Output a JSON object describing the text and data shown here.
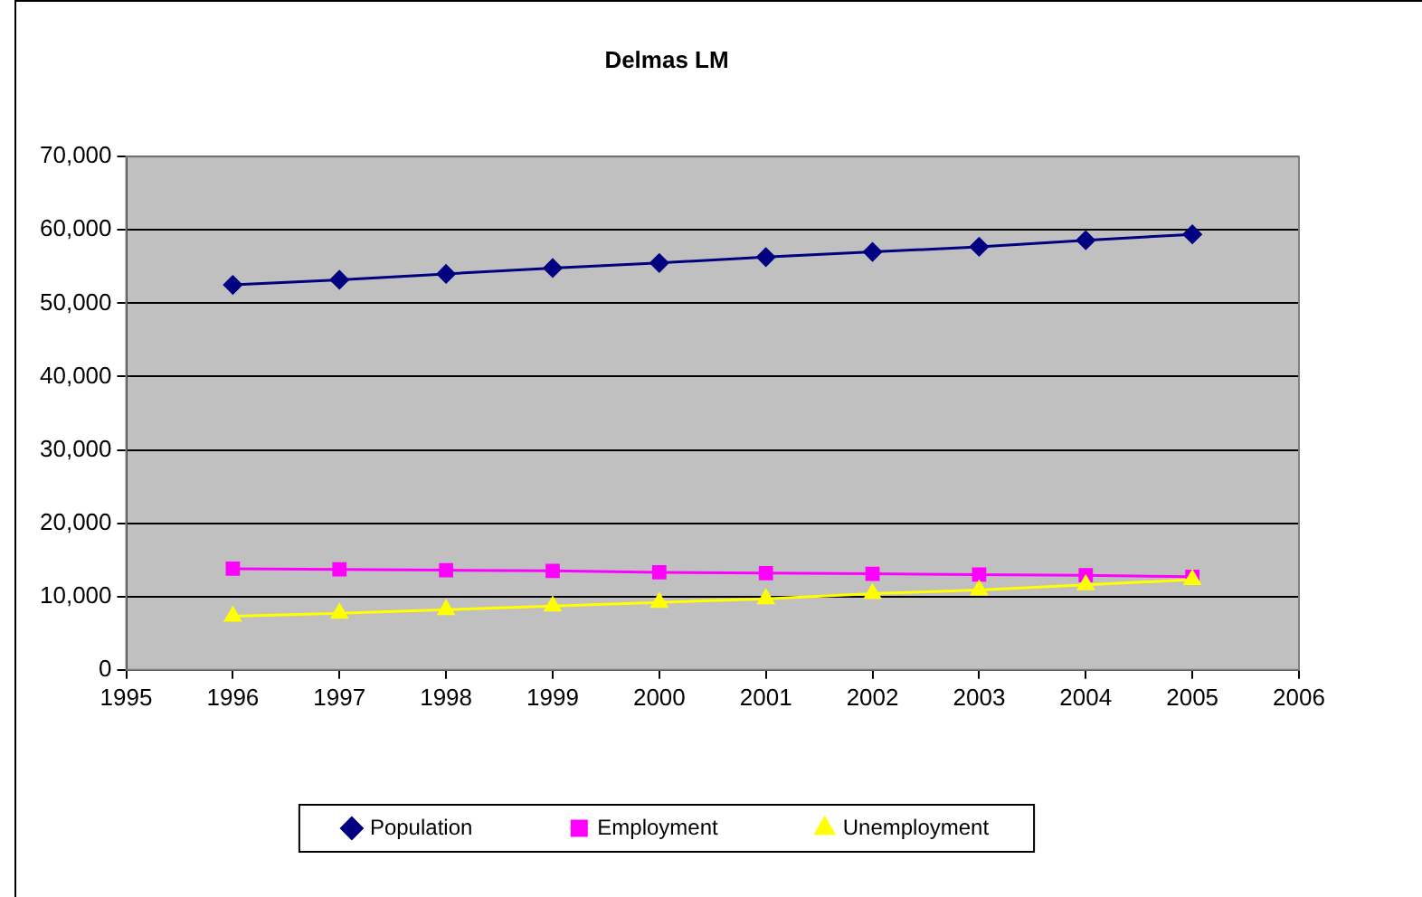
{
  "chart_data": {
    "type": "line",
    "title": "Delmas LM",
    "x": [
      1996,
      1997,
      1998,
      1999,
      2000,
      2001,
      2002,
      2003,
      2004,
      2005
    ],
    "series": [
      {
        "name": "Population",
        "color": "#000080",
        "marker": "diamond",
        "values": [
          52500,
          53200,
          54000,
          54800,
          55500,
          56300,
          57000,
          57700,
          58600,
          59400
        ]
      },
      {
        "name": "Employment",
        "color": "#ff00ff",
        "marker": "square",
        "values": [
          13800,
          13700,
          13600,
          13500,
          13300,
          13200,
          13100,
          13000,
          12900,
          12700
        ]
      },
      {
        "name": "Unemployment",
        "color": "#ffff00",
        "marker": "triangle",
        "values": [
          7300,
          7700,
          8200,
          8700,
          9200,
          9700,
          10400,
          10900,
          11600,
          12300
        ]
      }
    ],
    "xlim": [
      1995,
      2006
    ],
    "xticks": [
      1995,
      1996,
      1997,
      1998,
      1999,
      2000,
      2001,
      2002,
      2003,
      2004,
      2005,
      2006
    ],
    "ylim": [
      0,
      70000
    ],
    "yticks": [
      {
        "value": 0,
        "label": "0"
      },
      {
        "value": 10000,
        "label": "10,000"
      },
      {
        "value": 20000,
        "label": "20,000"
      },
      {
        "value": 30000,
        "label": "30,000"
      },
      {
        "value": 40000,
        "label": "40,000"
      },
      {
        "value": 50000,
        "label": "50,000"
      },
      {
        "value": 60000,
        "label": "60,000"
      },
      {
        "value": 70000,
        "label": "70,000"
      }
    ],
    "grid": "y",
    "legend": "bottom",
    "line_style": "solid"
  }
}
